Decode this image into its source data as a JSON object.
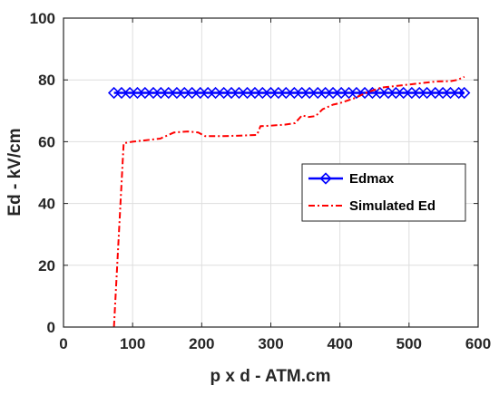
{
  "chart_data": {
    "type": "line",
    "xlabel": "p x d - ATM.cm",
    "ylabel": "Ed - kV/cm",
    "xlim": [
      0,
      600
    ],
    "ylim": [
      0,
      100
    ],
    "xticks": [
      0,
      100,
      200,
      300,
      400,
      500,
      600
    ],
    "yticks": [
      0,
      20,
      40,
      60,
      80,
      100
    ],
    "grid": true,
    "legend_position": "center-right",
    "series": [
      {
        "name": "Edmax",
        "color": "#0000ff",
        "line_style": "solid",
        "marker": "diamond",
        "x": [
          73,
          84,
          96,
          107,
          118,
          130,
          141,
          152,
          164,
          175,
          186,
          198,
          209,
          220,
          232,
          243,
          254,
          266,
          277,
          288,
          300,
          311,
          322,
          334,
          345,
          356,
          368,
          379,
          390,
          402,
          413,
          424,
          436,
          447,
          458,
          470,
          481,
          492,
          504,
          515,
          526,
          538,
          549,
          560,
          572,
          580
        ],
        "y": [
          75.8,
          75.8,
          75.8,
          75.8,
          75.8,
          75.8,
          75.8,
          75.8,
          75.8,
          75.8,
          75.8,
          75.8,
          75.8,
          75.8,
          75.8,
          75.8,
          75.8,
          75.8,
          75.8,
          75.8,
          75.8,
          75.8,
          75.8,
          75.8,
          75.8,
          75.8,
          75.8,
          75.8,
          75.8,
          75.8,
          75.8,
          75.8,
          75.8,
          75.8,
          75.8,
          75.8,
          75.8,
          75.8,
          75.8,
          75.8,
          75.8,
          75.8,
          75.8,
          75.8,
          75.8,
          75.8
        ]
      },
      {
        "name": "Simulated Ed",
        "color": "#ff0000",
        "line_style": "dashdot",
        "marker": "none",
        "x": [
          73,
          87,
          100,
          120,
          140,
          160,
          180,
          195,
          205,
          230,
          260,
          280,
          285,
          300,
          320,
          335,
          345,
          355,
          365,
          375,
          390,
          400,
          420,
          440,
          460,
          480,
          500,
          520,
          540,
          560,
          570,
          580
        ],
        "y": [
          0,
          59.5,
          60,
          60.5,
          61,
          63,
          63.3,
          63,
          61.8,
          61.8,
          62,
          62.2,
          65,
          65.2,
          65.5,
          66,
          68.5,
          68,
          68.3,
          70.5,
          72,
          72.5,
          74,
          76,
          77.5,
          78,
          78.5,
          79,
          79.5,
          79.6,
          80,
          81
        ]
      }
    ]
  }
}
